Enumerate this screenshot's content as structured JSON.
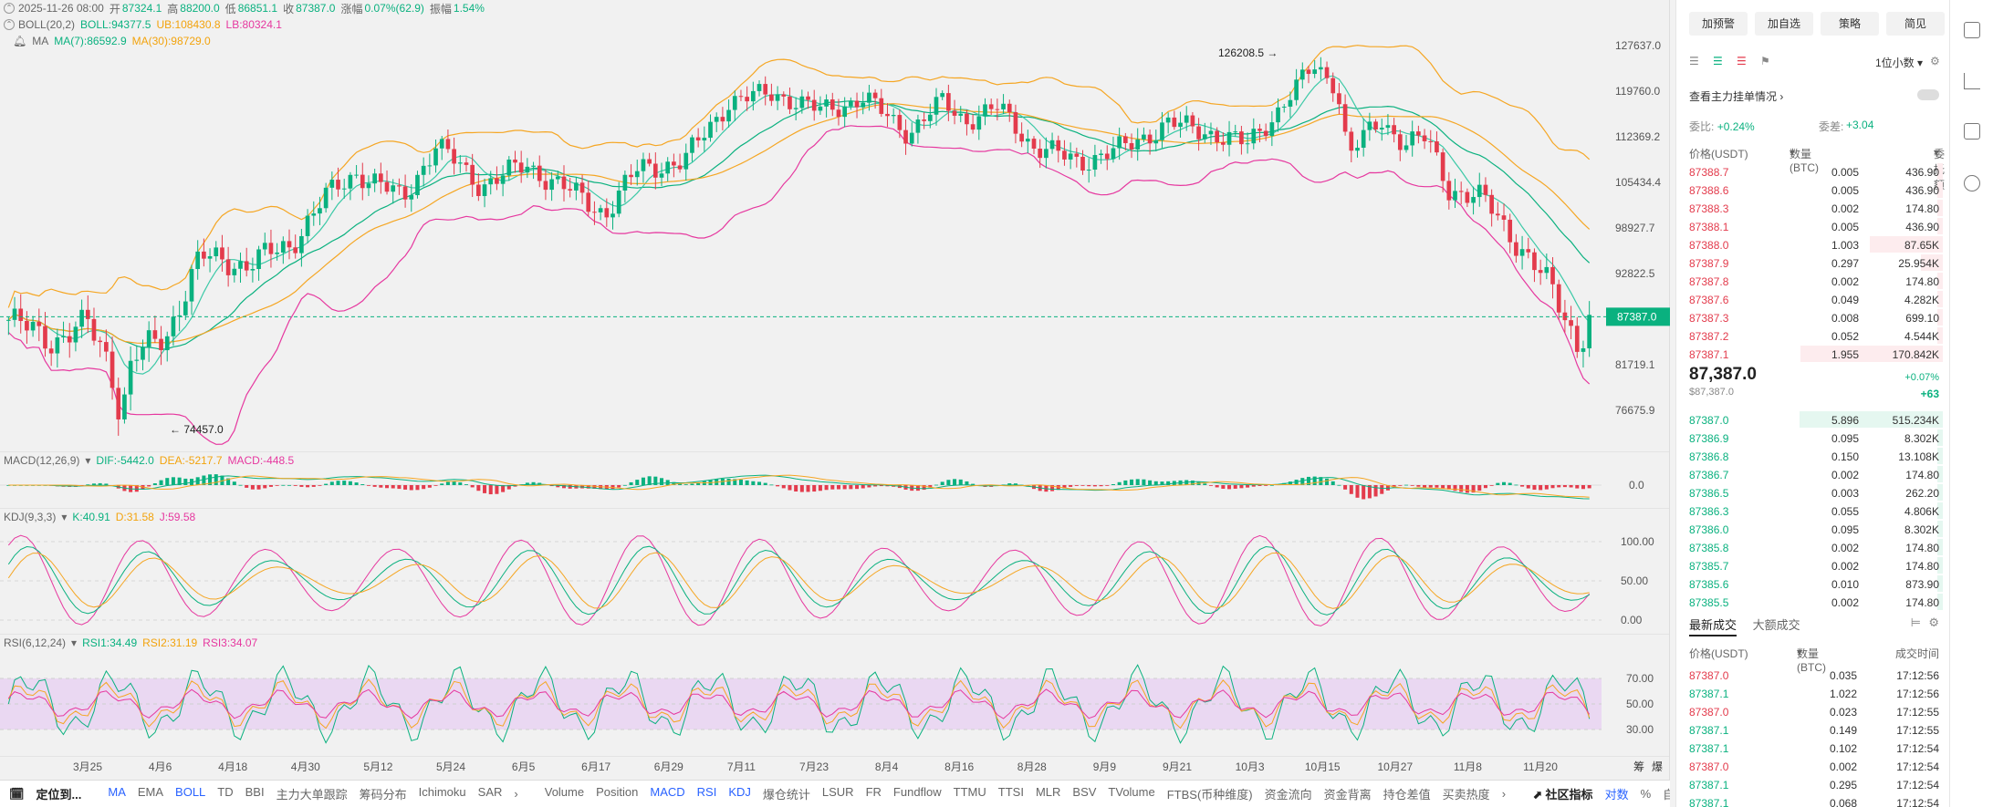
{
  "legend": {
    "ohlc": {
      "date": "2025-11-26 08:00",
      "open_label": "开",
      "open": "87324.1",
      "high_label": "高",
      "high": "88200.0",
      "low_label": "低",
      "low": "86851.1",
      "close_label": "收",
      "close": "87387.0",
      "change_label": "涨幅",
      "change": "0.07%(62.9)",
      "amp_label": "振幅",
      "amp": "1.54%"
    },
    "boll": {
      "name": "BOLL(20,2)",
      "mid": "BOLL:94377.5",
      "ub": "UB:108430.8",
      "lb": "LB:80324.1"
    },
    "ma": {
      "name": "MA",
      "ma7": "MA(7):86592.9",
      "ma30": "MA(30):98729.0"
    }
  },
  "price_axis": [
    "127637.0",
    "119760.0",
    "112369.2",
    "105434.4",
    "98927.7",
    "92822.5",
    "81719.1",
    "76675.9"
  ],
  "current_price": "87387.0",
  "high_mark": "126208.5",
  "low_mark": "74457.0",
  "macd": {
    "name": "MACD(12,26,9)",
    "dif": "DIF:-5442.0",
    "dea": "DEA:-5217.7",
    "macd": "MACD:-448.5",
    "axis": [
      "0.0"
    ]
  },
  "kdj": {
    "name": "KDJ(9,3,3)",
    "k": "K:40.91",
    "d": "D:31.58",
    "j": "J:59.58",
    "axis": [
      "100.00",
      "50.00",
      "0.00"
    ]
  },
  "rsi": {
    "name": "RSI(6,12,24)",
    "r1": "RSI1:34.49",
    "r2": "RSI2:31.19",
    "r3": "RSI3:34.07",
    "axis": [
      "70.00",
      "50.00",
      "30.00"
    ]
  },
  "x_axis": [
    "3月25",
    "4月6",
    "4月18",
    "4月30",
    "5月12",
    "5月24",
    "6月5",
    "6月17",
    "6月29",
    "7月11",
    "7月23",
    "8月4",
    "8月16",
    "8月28",
    "9月9",
    "9月21",
    "10月3",
    "10月15",
    "10月27",
    "11月8",
    "11月20"
  ],
  "x_axis_right": [
    "筹",
    "爆"
  ],
  "bottom_bar": {
    "locate": "定位到...",
    "main_indicators": [
      "MA",
      "EMA",
      "BOLL",
      "TD",
      "BBI",
      "主力大单跟踪",
      "筹码分布",
      "Ichimoku",
      "SAR"
    ],
    "sub_indicators": [
      "Volume",
      "Position",
      "MACD",
      "RSI",
      "KDJ",
      "爆仓统计",
      "LSUR",
      "FR",
      "Fundflow",
      "TTMU",
      "TTSI",
      "MLR",
      "BSV",
      "TVolume",
      "FTBS(币种维度)",
      "资金流向",
      "资金背离",
      "持仓差值",
      "买卖热度"
    ],
    "community": "社区指标",
    "log": "对数",
    "percent": "%",
    "auto": "自动"
  },
  "panel": {
    "buttons": [
      "加预警",
      "加自选",
      "策略",
      "简见"
    ],
    "precision": "1位小数",
    "view_orders": "查看主力挂单情况",
    "ratio_label": "委比:",
    "ratio": "+0.24%",
    "diff_label": "委差:",
    "diff": "+3.04",
    "cols": {
      "price": "价格(USDT)",
      "qty": "数量 (BTC)",
      "total": "委托额"
    },
    "asks": [
      [
        "87388.7",
        "0.005",
        "436.90"
      ],
      [
        "87388.6",
        "0.005",
        "436.90"
      ],
      [
        "87388.3",
        "0.002",
        "174.80"
      ],
      [
        "87388.1",
        "0.005",
        "436.90"
      ],
      [
        "87388.0",
        "1.003",
        "87.65K"
      ],
      [
        "87387.9",
        "0.297",
        "25.954K"
      ],
      [
        "87387.8",
        "0.002",
        "174.80"
      ],
      [
        "87387.6",
        "0.049",
        "4.282K"
      ],
      [
        "87387.3",
        "0.008",
        "699.10"
      ],
      [
        "87387.2",
        "0.052",
        "4.544K"
      ],
      [
        "87387.1",
        "1.955",
        "170.842K"
      ]
    ],
    "last": "87,387.0",
    "last_usd": "$87,387.0",
    "last_pct": "+0.07%",
    "last_diff": "+63",
    "bids": [
      [
        "87387.0",
        "5.896",
        "515.234K"
      ],
      [
        "87386.9",
        "0.095",
        "8.302K"
      ],
      [
        "87386.8",
        "0.150",
        "13.108K"
      ],
      [
        "87386.7",
        "0.002",
        "174.80"
      ],
      [
        "87386.5",
        "0.003",
        "262.20"
      ],
      [
        "87386.3",
        "0.055",
        "4.806K"
      ],
      [
        "87386.0",
        "0.095",
        "8.302K"
      ],
      [
        "87385.8",
        "0.002",
        "174.80"
      ],
      [
        "87385.7",
        "0.002",
        "174.80"
      ],
      [
        "87385.6",
        "0.010",
        "873.90"
      ],
      [
        "87385.5",
        "0.002",
        "174.80"
      ]
    ],
    "trades_tab": "最新成交",
    "big_trades_tab": "大额成交",
    "trade_cols": {
      "price": "价格(USDT)",
      "qty": "数量(BTC)",
      "time": "成交时间"
    },
    "trades": [
      [
        "87387.0",
        "0.035",
        "17:12:56",
        "red"
      ],
      [
        "87387.1",
        "1.022",
        "17:12:56",
        "green"
      ],
      [
        "87387.0",
        "0.023",
        "17:12:55",
        "red"
      ],
      [
        "87387.1",
        "0.149",
        "17:12:55",
        "green"
      ],
      [
        "87387.1",
        "0.102",
        "17:12:54",
        "green"
      ],
      [
        "87387.0",
        "0.002",
        "17:12:54",
        "red"
      ],
      [
        "87387.1",
        "0.295",
        "17:12:54",
        "green"
      ],
      [
        "87387.1",
        "0.068",
        "17:12:54",
        "green"
      ]
    ]
  },
  "colors": {
    "up": "#0ab17f",
    "down": "#e33b4c",
    "ub": "#f5a623",
    "lb": "#e6389f",
    "mid": "#0ab17f",
    "ma7": "#3cc9a7",
    "ma30": "#f5a623"
  }
}
